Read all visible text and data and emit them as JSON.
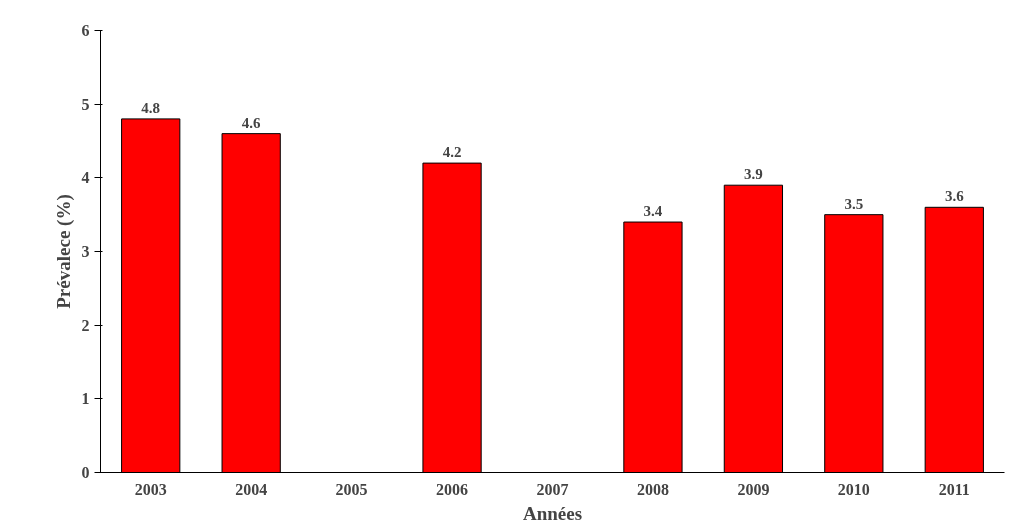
{
  "chart_data": {
    "type": "bar",
    "xlabel": "Années",
    "ylabel": "Prévalece (%)",
    "categories": [
      "2003",
      "2004",
      "2005",
      "2006",
      "2007",
      "2008",
      "2009",
      "2010",
      "2011"
    ],
    "values": [
      4.8,
      4.6,
      null,
      4.2,
      null,
      3.4,
      3.9,
      3.5,
      3.6
    ],
    "color": "#ff0000",
    "ylim": [
      0,
      6
    ],
    "yticks": [
      0,
      1,
      2,
      3,
      4,
      5,
      6
    ],
    "grid": false,
    "data_labels": true
  }
}
